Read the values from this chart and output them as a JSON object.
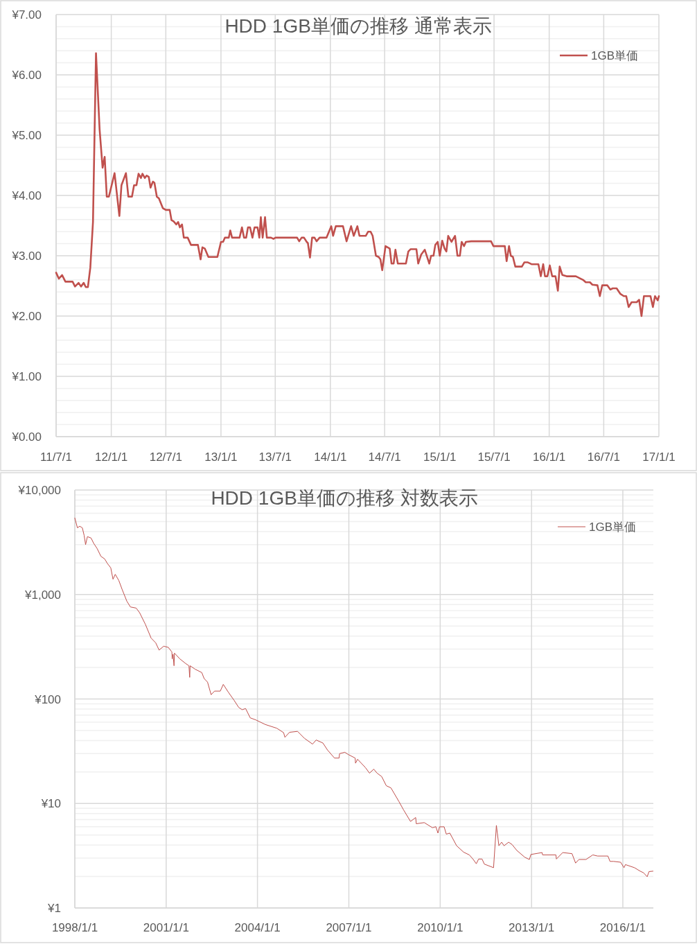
{
  "chart_data": [
    {
      "type": "line",
      "title": "HDD 1GB単価の推移 通常表示",
      "grid": true,
      "legend": "top right",
      "xlim": [
        "2011-07-01",
        "2017-01-01"
      ],
      "xticks": [
        {
          "value": "2011-07-01",
          "label": "11/7/1"
        },
        {
          "value": "2012-01-01",
          "label": "12/1/1"
        },
        {
          "value": "2012-07-01",
          "label": "12/7/1"
        },
        {
          "value": "2013-01-01",
          "label": "13/1/1"
        },
        {
          "value": "2013-07-01",
          "label": "13/7/1"
        },
        {
          "value": "2014-01-01",
          "label": "14/1/1"
        },
        {
          "value": "2014-07-01",
          "label": "14/7/1"
        },
        {
          "value": "2015-01-01",
          "label": "15/1/1"
        },
        {
          "value": "2015-07-01",
          "label": "15/7/1"
        },
        {
          "value": "2016-01-01",
          "label": "16/1/1"
        },
        {
          "value": "2016-07-01",
          "label": "16/7/1"
        },
        {
          "value": "2017-01-01",
          "label": "17/1/1"
        }
      ],
      "ylim": [
        0,
        7
      ],
      "yticks": [
        {
          "value": 0,
          "label": "¥0.00"
        },
        {
          "value": 1,
          "label": "¥1.00"
        },
        {
          "value": 2,
          "label": "¥2.00"
        },
        {
          "value": 3,
          "label": "¥3.00"
        },
        {
          "value": 4,
          "label": "¥4.00"
        },
        {
          "value": 5,
          "label": "¥5.00"
        },
        {
          "value": 6,
          "label": "¥6.00"
        },
        {
          "value": 7,
          "label": "¥7.00"
        }
      ],
      "x": [
        "2011-07-01",
        "2011-07-10",
        "2011-07-21",
        "2011-08-01",
        "2011-08-25",
        "2011-09-02",
        "2011-09-14",
        "2011-09-22",
        "2011-10-01",
        "2011-10-08",
        "2011-10-15",
        "2011-10-23",
        "2011-11-01",
        "2011-11-11",
        "2011-11-23",
        "2011-12-03",
        "2011-12-10",
        "2011-12-17",
        "2011-12-24",
        "2012-01-12",
        "2012-01-28",
        "2012-02-04",
        "2012-02-19",
        "2012-02-27",
        "2012-03-10",
        "2012-03-17",
        "2012-03-25",
        "2012-04-01",
        "2012-04-09",
        "2012-04-14",
        "2012-04-22",
        "2012-04-28",
        "2012-05-05",
        "2012-05-11",
        "2012-05-19",
        "2012-05-24",
        "2012-06-01",
        "2012-06-08",
        "2012-06-21",
        "2012-07-01",
        "2012-07-14",
        "2012-07-20",
        "2012-07-27",
        "2012-08-05",
        "2012-08-11",
        "2012-08-17",
        "2012-08-24",
        "2012-08-30",
        "2012-09-12",
        "2012-09-23",
        "2012-10-16",
        "2012-10-25",
        "2012-10-31",
        "2012-11-08",
        "2012-11-20",
        "2012-12-20",
        "2013-01-01",
        "2013-01-08",
        "2013-01-14",
        "2013-01-27",
        "2013-02-01",
        "2013-02-07",
        "2013-03-04",
        "2013-03-12",
        "2013-03-19",
        "2013-03-26",
        "2013-04-01",
        "2013-04-08",
        "2013-04-16",
        "2013-04-23",
        "2013-05-03",
        "2013-05-09",
        "2013-05-14",
        "2013-05-20",
        "2013-05-28",
        "2013-06-03",
        "2013-06-17",
        "2013-06-25",
        "2013-07-02",
        "2013-09-12",
        "2013-09-19",
        "2013-09-27",
        "2013-10-05",
        "2013-10-14",
        "2013-10-18",
        "2013-10-25",
        "2013-11-01",
        "2013-11-09",
        "2013-11-16",
        "2013-11-26",
        "2013-12-19",
        "2014-01-04",
        "2014-01-10",
        "2014-01-19",
        "2014-02-12",
        "2014-02-24",
        "2014-03-11",
        "2014-03-20",
        "2014-04-01",
        "2014-04-08",
        "2014-04-29",
        "2014-05-07",
        "2014-05-15",
        "2014-05-22",
        "2014-06-02",
        "2014-06-11",
        "2014-06-17",
        "2014-06-23",
        "2014-07-04",
        "2014-07-18",
        "2014-07-24",
        "2014-07-31",
        "2014-08-06",
        "2014-08-14",
        "2014-09-10",
        "2014-09-18",
        "2014-09-26",
        "2014-10-15",
        "2014-10-21",
        "2014-10-31",
        "2014-11-12",
        "2014-11-27",
        "2014-12-03",
        "2014-12-11",
        "2014-12-17",
        "2014-12-25",
        "2015-01-01",
        "2015-01-09",
        "2015-01-17",
        "2015-01-23",
        "2015-01-29",
        "2015-02-09",
        "2015-02-21",
        "2015-03-01",
        "2015-03-09",
        "2015-03-15",
        "2015-03-23",
        "2015-03-29",
        "2015-04-16",
        "2015-06-21",
        "2015-06-29",
        "2015-08-06",
        "2015-08-12",
        "2015-08-20",
        "2015-08-26",
        "2015-09-02",
        "2015-09-10",
        "2015-10-02",
        "2015-10-10",
        "2015-10-22",
        "2015-11-03",
        "2015-11-26",
        "2015-12-04",
        "2015-12-12",
        "2015-12-18",
        "2015-12-26",
        "2016-01-03",
        "2016-01-11",
        "2016-01-22",
        "2016-01-30",
        "2016-02-05",
        "2016-02-14",
        "2016-02-28",
        "2016-03-30",
        "2016-04-23",
        "2016-05-02",
        "2016-05-16",
        "2016-05-24",
        "2016-06-10",
        "2016-06-18",
        "2016-06-26",
        "2016-07-13",
        "2016-07-23",
        "2016-07-31",
        "2016-08-13",
        "2016-08-25",
        "2016-09-06",
        "2016-09-14",
        "2016-09-22",
        "2016-10-02",
        "2016-10-19",
        "2016-10-27",
        "2016-11-04",
        "2016-11-12",
        "2016-12-04",
        "2016-12-12",
        "2016-12-19",
        "2016-12-28",
        "2017-01-01"
      ],
      "series": [
        {
          "name": "1GB単価",
          "color": "#c0504d",
          "values": [
            2.72,
            2.62,
            2.68,
            2.57,
            2.57,
            2.49,
            2.55,
            2.49,
            2.55,
            2.48,
            2.48,
            2.8,
            3.56,
            6.36,
            5.1,
            4.46,
            4.64,
            3.98,
            3.98,
            4.37,
            3.66,
            4.17,
            4.37,
            3.98,
            3.98,
            4.17,
            4.17,
            4.36,
            4.29,
            4.36,
            4.29,
            4.33,
            4.31,
            4.13,
            4.23,
            4.21,
            3.98,
            3.95,
            3.79,
            3.76,
            3.76,
            3.59,
            3.57,
            3.52,
            3.56,
            3.47,
            3.52,
            3.3,
            3.3,
            3.18,
            3.18,
            2.94,
            3.14,
            3.12,
            2.98,
            2.98,
            3.23,
            3.23,
            3.3,
            3.3,
            3.42,
            3.3,
            3.3,
            3.47,
            3.3,
            3.3,
            3.47,
            3.47,
            3.3,
            3.47,
            3.47,
            3.3,
            3.64,
            3.3,
            3.64,
            3.3,
            3.3,
            3.28,
            3.3,
            3.3,
            3.24,
            3.3,
            3.3,
            3.23,
            3.21,
            2.97,
            3.3,
            3.3,
            3.24,
            3.3,
            3.3,
            3.49,
            3.33,
            3.49,
            3.49,
            3.24,
            3.49,
            3.33,
            3.49,
            3.33,
            3.33,
            3.4,
            3.4,
            3.33,
            3.0,
            2.98,
            2.94,
            2.76,
            3.16,
            3.12,
            2.87,
            2.87,
            3.1,
            2.87,
            2.87,
            3.07,
            3.11,
            3.11,
            2.87,
            3.02,
            3.1,
            2.87,
            3.0,
            3.0,
            3.18,
            3.23,
            3.0,
            3.25,
            3.12,
            3.07,
            3.33,
            3.23,
            3.33,
            3.0,
            3.0,
            3.23,
            3.16,
            3.23,
            3.24,
            3.24,
            3.16,
            3.16,
            2.91,
            3.16,
            3.0,
            2.98,
            2.82,
            2.82,
            2.89,
            2.89,
            2.86,
            2.86,
            2.66,
            2.86,
            2.66,
            2.66,
            2.84,
            2.66,
            2.66,
            2.42,
            2.82,
            2.68,
            2.66,
            2.66,
            2.6,
            2.56,
            2.56,
            2.52,
            2.51,
            2.33,
            2.51,
            2.51,
            2.44,
            2.46,
            2.46,
            2.37,
            2.33,
            2.33,
            2.15,
            2.23,
            2.23,
            2.27,
            2.0,
            2.33,
            2.33,
            2.15,
            2.33,
            2.26,
            2.33
          ]
        }
      ]
    },
    {
      "type": "line",
      "title": "HDD 1GB単価の推移 対数表示",
      "grid": true,
      "legend": "top right",
      "log": "y",
      "xlim": [
        "1998-01-01",
        "2017-01-01"
      ],
      "xticks": [
        {
          "value": "1998-01-01",
          "label": "1998/1/1"
        },
        {
          "value": "2001-01-01",
          "label": "2001/1/1"
        },
        {
          "value": "2004-01-01",
          "label": "2004/1/1"
        },
        {
          "value": "2007-01-01",
          "label": "2007/1/1"
        },
        {
          "value": "2010-01-01",
          "label": "2010/1/1"
        },
        {
          "value": "2013-01-01",
          "label": "2013/1/1"
        },
        {
          "value": "2016-01-01",
          "label": "2016/1/1"
        }
      ],
      "ylim": [
        1,
        10000
      ],
      "yticks": [
        {
          "value": 1,
          "label": "¥1"
        },
        {
          "value": 10,
          "label": "¥10"
        },
        {
          "value": 100,
          "label": "¥100"
        },
        {
          "value": 1000,
          "label": "¥1,000"
        },
        {
          "value": 10000,
          "label": "¥10,000"
        }
      ],
      "x": [
        "1998-01-01",
        "1998-02-01",
        "1998-03-01",
        "1998-04-01",
        "1998-04-23",
        "1998-05-10",
        "1998-06-01",
        "1998-07-15",
        "1998-08-15",
        "1998-09-25",
        "1998-11-10",
        "1998-12-25",
        "1999-01-25",
        "1999-03-08",
        "1999-04-04",
        "1999-05-01",
        "1999-06-13",
        "1999-07-24",
        "1999-09-17",
        "1999-10-30",
        "2000-01-07",
        "2000-02-17",
        "2000-04-26",
        "2000-07-04",
        "2000-08-28",
        "2000-10-08",
        "2000-12-02",
        "2001-01-26",
        "2001-03-10",
        "2001-03-14",
        "2001-03-24",
        "2001-04-05",
        "2001-04-10",
        "2001-06-14",
        "2001-08-21",
        "2001-10-01",
        "2001-10-10",
        "2001-10-15",
        "2001-12-13",
        "2002-03-04",
        "2002-04-01",
        "2002-05-12",
        "2002-06-24",
        "2002-08-04",
        "2002-10-12",
        "2002-11-17",
        "2003-01-17",
        "2003-03-27",
        "2003-05-21",
        "2003-07-01",
        "2003-08-12",
        "2003-10-06",
        "2003-12-13",
        "2004-04-04",
        "2004-08-20",
        "2004-11-10",
        "2004-11-25",
        "2005-01-19",
        "2005-04-26",
        "2005-07-18",
        "2005-10-23",
        "2005-12-05",
        "2006-02-24",
        "2006-04-20",
        "2006-07-13",
        "2006-09-06",
        "2006-09-12",
        "2006-11-14",
        "2006-12-26",
        "2007-03-18",
        "2007-03-22",
        "2007-04-16",
        "2007-07-20",
        "2007-09-06",
        "2007-10-27",
        "2007-12-06",
        "2008-01-30",
        "2008-03-25",
        "2008-05-20",
        "2008-06-25",
        "2008-08-25",
        "2008-10-19",
        "2009-01-10",
        "2009-03-13",
        "2009-03-20",
        "2009-06-24",
        "2009-09-30",
        "2009-11-10",
        "2009-12-05",
        "2009-12-24",
        "2010-02-17",
        "2010-03-15",
        "2010-04-26",
        "2010-07-17",
        "2010-10-09",
        "2010-12-16",
        "2011-02-02",
        "2011-03-10",
        "2011-04-07",
        "2011-05-18",
        "2011-06-14",
        "2011-10-03",
        "2011-11-06",
        "2011-12-06",
        "2012-01-08",
        "2012-02-06",
        "2012-04-01",
        "2012-05-12",
        "2012-07-07",
        "2012-10-11",
        "2012-12-06",
        "2012-12-24",
        "2013-05-07",
        "2013-05-13",
        "2013-10-20",
        "2013-10-26",
        "2014-01-10",
        "2014-05-01",
        "2014-06-13",
        "2014-07-23",
        "2014-10-16",
        "2015-01-06",
        "2015-03-03",
        "2015-07-06",
        "2015-07-31",
        "2015-09-13",
        "2015-12-05",
        "2016-01-15",
        "2016-02-01",
        "2016-05-19",
        "2016-07-27",
        "2016-09-06",
        "2016-10-19",
        "2016-11-10",
        "2016-12-28"
      ],
      "series": [
        {
          "name": "1GB単価",
          "color": "#c0504d",
          "values": [
            5400,
            4350,
            4500,
            4350,
            3670,
            3000,
            3580,
            3470,
            3090,
            2760,
            2320,
            2190,
            1990,
            1800,
            1400,
            1560,
            1360,
            1110,
            863,
            760,
            741,
            670,
            519,
            383,
            345,
            294,
            320,
            312,
            282,
            242,
            268,
            208,
            275,
            242,
            219,
            208,
            161,
            208,
            193,
            179,
            157,
            145,
            110,
            119,
            119,
            138,
            116,
            97,
            83,
            79,
            81,
            66,
            63,
            57,
            52.5,
            47.6,
            43,
            48,
            49,
            42,
            37,
            40.5,
            37.9,
            32.5,
            27.2,
            27.2,
            30,
            30.9,
            29.4,
            27.2,
            24.3,
            26.5,
            22,
            19.5,
            21.3,
            19.5,
            18.1,
            14.8,
            14.1,
            12.6,
            10.4,
            8.67,
            6.73,
            7.34,
            6.4,
            6.56,
            5.86,
            6.0,
            5.21,
            5.98,
            5.98,
            5.09,
            5.21,
            3.94,
            3.42,
            3.22,
            2.91,
            2.65,
            2.94,
            2.94,
            2.63,
            2.43,
            6.17,
            3.94,
            4.26,
            3.94,
            4.26,
            4.05,
            3.56,
            3.06,
            2.91,
            3.25,
            3.39,
            3.22,
            3.22,
            2.94,
            3.39,
            3.31,
            2.69,
            2.91,
            2.91,
            3.22,
            3.14,
            3.14,
            2.79,
            2.79,
            2.74,
            2.43,
            2.6,
            2.43,
            2.25,
            2.17,
            1.99,
            2.23,
            2.25
          ]
        }
      ]
    }
  ]
}
